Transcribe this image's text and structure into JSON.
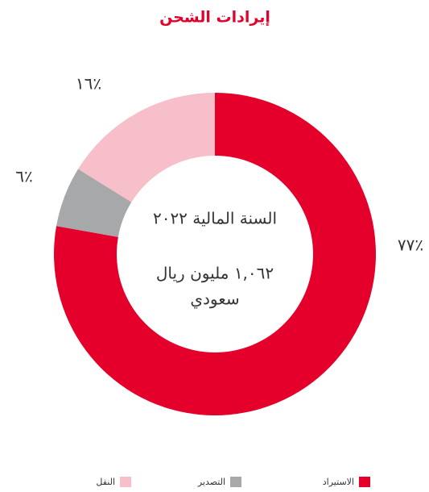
{
  "chart_data": {
    "type": "donut",
    "title": "إيرادات الشحن",
    "center_texts": [
      "السنة المالية ٢٠٢٢",
      "١,٠٦٢ مليون ريال",
      "سعودي"
    ],
    "categories": [
      "الاستيراد",
      "التصدير",
      "النقل"
    ],
    "values": [
      77,
      6,
      16
    ],
    "value_labels": [
      "٪٧٧",
      "٪٦",
      "٪١٦"
    ],
    "colors": [
      "#e4002b",
      "#a7a8aa",
      "#f6bfc9"
    ]
  }
}
